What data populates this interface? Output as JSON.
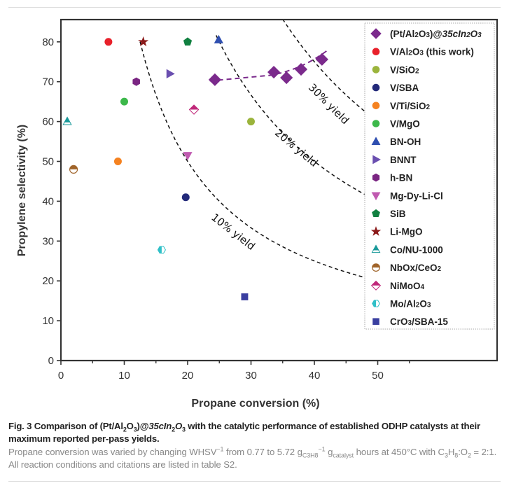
{
  "figure": {
    "caption_title_parts": {
      "prefix": "Fig. 3 Comparison of (Pt/Al",
      "sub1": "2",
      "mid1": "O",
      "sub2": "3",
      "mid2": ")@",
      "italic": "35cIn",
      "sub3": "2",
      "italic2": "O",
      "sub4": "3",
      "suffix": " with the catalytic performance of established ODHP catalysts at their maximum reported per-pass yields."
    },
    "caption_body_parts": {
      "p1": "Propane conversion was varied by changing WHSV",
      "sup1": "−1",
      "p2": " from 0.77 to 5.72 g",
      "sub1": "C3H8",
      "sup2": "−1",
      "p3": " g",
      "sub2": "catalyst",
      "p4": " hours at 450°C with C",
      "sub3": "3",
      "p5": "H",
      "sub4": "8",
      "p6": ":O",
      "sub5": "2",
      "p7": " = 2:1. All reaction conditions and citations are listed in table S2."
    }
  },
  "chart_data": {
    "type": "scatter",
    "title": "",
    "xlabel": "Propane conversion (%)",
    "ylabel": "Propylene selectivity (%)",
    "xlim": [
      0,
      66
    ],
    "ylim": [
      0,
      85
    ],
    "xticks": [
      0,
      10,
      20,
      30,
      40,
      50
    ],
    "xminor_ticks": [
      5,
      15,
      25,
      35,
      45,
      55
    ],
    "yticks": [
      0,
      10,
      20,
      30,
      40,
      50,
      60,
      70,
      80
    ],
    "grid": false,
    "legend_position": "top-right",
    "yield_curves": [
      {
        "label": "10% yield",
        "yield": 10,
        "x_range": [
          12.5,
          50
        ]
      },
      {
        "label": "20% yield",
        "yield": 20,
        "x_range": [
          24.5,
          50
        ]
      },
      {
        "label": "30% yield",
        "yield": 30,
        "x_range": [
          35,
          50
        ]
      }
    ],
    "series": [
      {
        "name": "(Pt/Al2O3)@35cIn2O3",
        "label_html_parts": [
          "(Pt/Al",
          "2",
          "O",
          "3",
          ")@",
          "35cIn",
          "2",
          "O",
          "3"
        ],
        "marker": "diamond",
        "color": "#7b2a8c",
        "trend_line": true,
        "points": [
          [
            24.3,
            70.5
          ],
          [
            33.6,
            72.4
          ],
          [
            35.6,
            71.0
          ],
          [
            37.9,
            73.1
          ],
          [
            41.2,
            75.6
          ]
        ]
      },
      {
        "name": "V/Al2O3 (this work)",
        "marker": "circle",
        "color": "#e8202a",
        "points": [
          [
            7.5,
            80
          ]
        ]
      },
      {
        "name": "V/SiO2",
        "marker": "circle",
        "color": "#9bb43c",
        "points": [
          [
            30,
            60
          ]
        ]
      },
      {
        "name": "V/SBA",
        "marker": "circle",
        "color": "#232a7a",
        "points": [
          [
            19.7,
            41
          ]
        ]
      },
      {
        "name": "V/Ti/SiO2",
        "marker": "circle",
        "color": "#f58220",
        "points": [
          [
            9,
            50
          ]
        ]
      },
      {
        "name": "V/MgO",
        "marker": "circle",
        "color": "#3cb84a",
        "points": [
          [
            10,
            65
          ]
        ]
      },
      {
        "name": "BN-OH",
        "marker": "triangle-up",
        "color": "#2f4fb0",
        "points": [
          [
            24.9,
            80.5
          ]
        ]
      },
      {
        "name": "BNNT",
        "marker": "triangle-right",
        "color": "#6a4fb0",
        "points": [
          [
            17.2,
            72
          ]
        ]
      },
      {
        "name": "h-BN",
        "marker": "hexagon",
        "color": "#7a2582",
        "points": [
          [
            11.9,
            70
          ]
        ]
      },
      {
        "name": "Mg-Dy-Li-Cl",
        "marker": "triangle-down",
        "color": "#c05ab0",
        "points": [
          [
            20,
            51.5
          ]
        ]
      },
      {
        "name": "SiB",
        "marker": "pentagon",
        "color": "#118040",
        "points": [
          [
            20,
            80
          ]
        ]
      },
      {
        "name": "Li-MgO",
        "marker": "star",
        "color": "#8b1a1a",
        "points": [
          [
            13,
            80
          ]
        ]
      },
      {
        "name": "Co/NU-1000",
        "marker": "triangle-half",
        "color": "#1a9a9a",
        "points": [
          [
            1,
            60
          ]
        ]
      },
      {
        "name": "NbOx/CeO2",
        "marker": "circle-half",
        "color": "#a0642a",
        "points": [
          [
            2,
            48
          ]
        ]
      },
      {
        "name": "NiMoO4",
        "marker": "diamond-half",
        "color": "#c0287a",
        "points": [
          [
            21,
            63
          ]
        ]
      },
      {
        "name": "Mo/Al2O3",
        "marker": "hexagon-half",
        "color": "#30c0c8",
        "points": [
          [
            15.9,
            27.8
          ]
        ]
      },
      {
        "name": "CrO3/SBA-15",
        "marker": "square",
        "color": "#3a3fa0",
        "points": [
          [
            29,
            16
          ]
        ]
      }
    ]
  }
}
